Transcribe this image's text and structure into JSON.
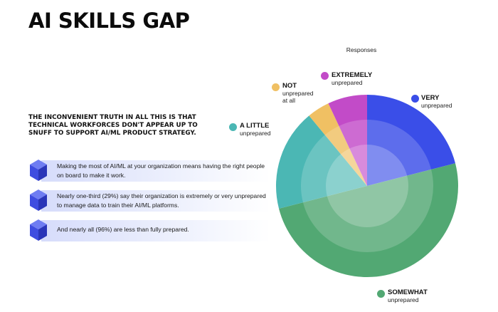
{
  "title": "AI SKILLS GAP",
  "lead": "THE INCONVENIENT TRUTH IN ALL THIS IS THAT TECHNICAL WORKFORCES DON'T APPEAR UP TO SNUFF TO SUPPORT AI/ML PRODUCT STRATEGY.",
  "bullets": [
    {
      "text": "Making the most of AI/ML at your organization means having the right people on board to make it work."
    },
    {
      "text": "Nearly one-third (29%) say their organization is extremely or very unprepared to manage data to train their AI/ML platforms."
    },
    {
      "text": "And nearly all (96%) are less than fully prepared."
    }
  ],
  "colors": {
    "accent": "#3f4de0",
    "bar": "#d6dcfb"
  },
  "chart_data": {
    "type": "pie",
    "title": "Responses",
    "categories": [
      "VERY",
      "SOMEWHAT",
      "A LITTLE",
      "NOT",
      "EXTREMELY"
    ],
    "values": [
      21,
      50,
      18,
      4,
      7
    ],
    "colors": [
      "#3a4ee8",
      "#52a873",
      "#4bb7b4",
      "#f0c063",
      "#c24bc8"
    ],
    "labels": [
      {
        "name": "VERY",
        "sub": "unprepared"
      },
      {
        "name": "SOMEWHAT",
        "sub": "unprepared"
      },
      {
        "name": "A LITTLE",
        "sub": "unprepared"
      },
      {
        "name": "NOT",
        "sub": "unprepared at all"
      },
      {
        "name": "EXTREMELY",
        "sub": "unprepared"
      }
    ]
  }
}
